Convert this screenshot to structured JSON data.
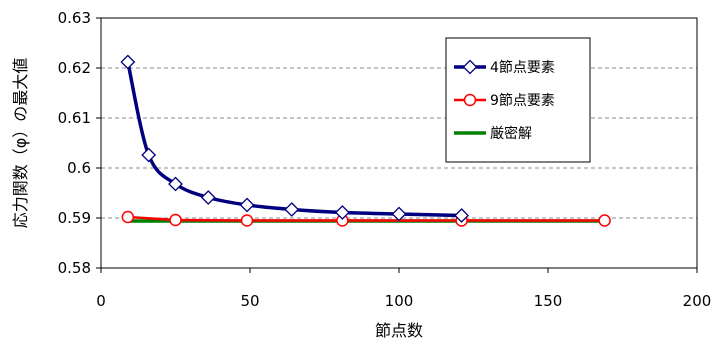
{
  "chart_data": {
    "type": "line",
    "xlabel": "節点数",
    "ylabel": "応力関数（φ）の最大値",
    "xlim": [
      0,
      200
    ],
    "ylim": [
      0.58,
      0.63
    ],
    "x_ticks": [
      "0",
      "50",
      "100",
      "150",
      "200"
    ],
    "y_ticks": [
      "0.58",
      "0.59",
      "0.6",
      "0.61",
      "0.62",
      "0.63"
    ],
    "grid": "horizontal dashed",
    "legend_position": "top-right",
    "series": [
      {
        "name": "4節点要素",
        "color": "#000080",
        "marker": "diamond",
        "x": [
          9,
          16,
          25,
          36,
          49,
          64,
          81,
          100,
          121
        ],
        "y": [
          0.6212,
          0.6026,
          0.5968,
          0.5941,
          0.5926,
          0.5917,
          0.5911,
          0.5908,
          0.5905
        ]
      },
      {
        "name": "9節点要素",
        "color": "#ff0000",
        "marker": "circle",
        "x": [
          9,
          25,
          49,
          81,
          121,
          169
        ],
        "y": [
          0.5902,
          0.5896,
          0.5895,
          0.5895,
          0.5895,
          0.5895
        ]
      },
      {
        "name": "厳密解",
        "color": "#008000",
        "marker": "none",
        "x": [
          9,
          169
        ],
        "y": [
          0.5894,
          0.5894
        ]
      }
    ]
  }
}
